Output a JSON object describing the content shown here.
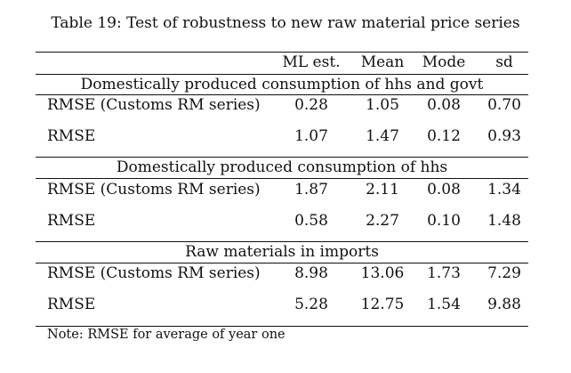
{
  "title": "Table 19: Test of robustness to new raw material price series",
  "columns": [
    "ML est.",
    "Mean",
    "Mode",
    "sd"
  ],
  "sections": [
    {
      "header": "Domestically produced consumption of hhs and govt",
      "rows": [
        {
          "label": "RMSE (Customs RM series)",
          "values": [
            "0.28",
            "1.05",
            "0.08",
            "0.70"
          ]
        },
        {
          "label": "RMSE",
          "values": [
            "1.07",
            "1.47",
            "0.12",
            "0.93"
          ]
        }
      ]
    },
    {
      "header": "Domestically produced consumption of hhs",
      "rows": [
        {
          "label": "RMSE (Customs RM series)",
          "values": [
            "1.87",
            "2.11",
            "0.08",
            "1.34"
          ]
        },
        {
          "label": "RMSE",
          "values": [
            "0.58",
            "2.27",
            "0.10",
            "1.48"
          ]
        }
      ]
    },
    {
      "header": "Raw materials in imports",
      "rows": [
        {
          "label": "RMSE (Customs RM series)",
          "values": [
            "8.98",
            "13.06",
            "1.73",
            "7.29"
          ]
        },
        {
          "label": "RMSE",
          "values": [
            "5.28",
            "12.75",
            "1.54",
            "9.88"
          ]
        }
      ]
    }
  ],
  "note": "Note: RMSE for average of year one"
}
